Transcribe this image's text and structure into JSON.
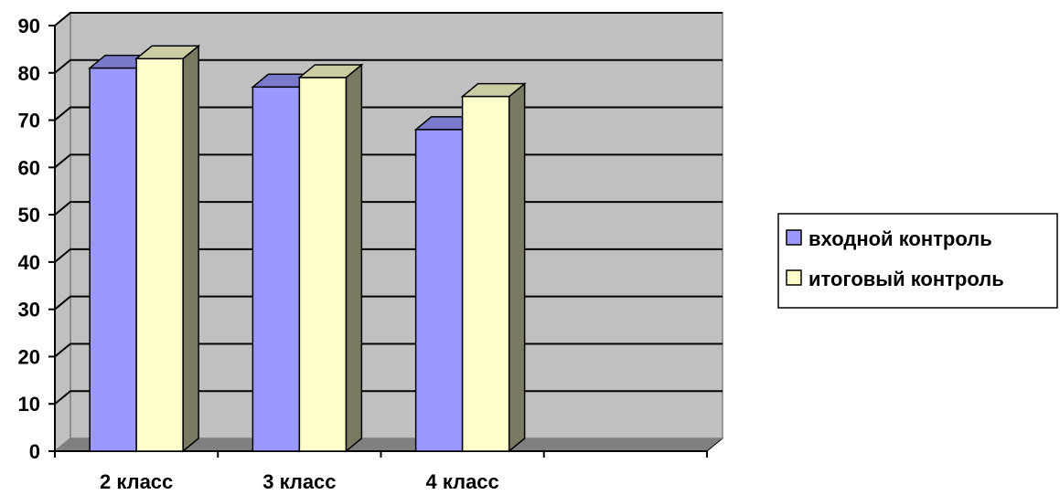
{
  "chart_data": {
    "type": "bar",
    "title": "",
    "xlabel": "",
    "ylabel": "",
    "categories": [
      "2 класс",
      "3 класс",
      "4 класс",
      ""
    ],
    "series": [
      {
        "name": "входной контроль",
        "values": [
          81,
          77,
          68,
          null
        ],
        "color": "#9999ff"
      },
      {
        "name": "итоговый контроль",
        "values": [
          83,
          79,
          75,
          null
        ],
        "color": "#ffffcc"
      }
    ],
    "ylim": [
      0,
      90
    ],
    "yticks": [
      0,
      10,
      20,
      30,
      40,
      50,
      60,
      70,
      80,
      90
    ],
    "grid": true,
    "legend": "right",
    "style": "3d",
    "colors": {
      "wall": "#c0c0c0",
      "floor": "#808080",
      "bar_side": "#7a7a62",
      "grid": "#000000"
    }
  }
}
